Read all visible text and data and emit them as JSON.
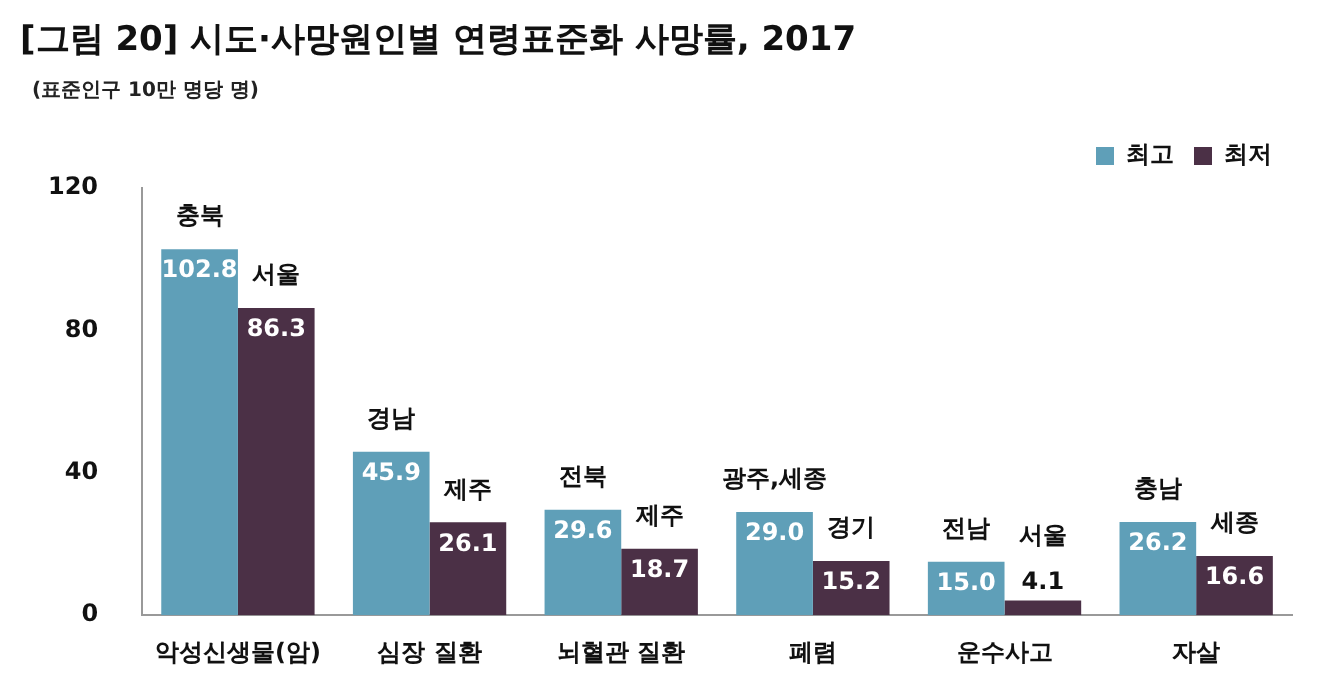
{
  "chart_data": {
    "type": "bar",
    "title": "[그림 20] 시도·사망원인별 연령표준화 사망률, 2017",
    "subtitle": "(표준인구 10만 명당 명)",
    "categories": [
      "악성신생물(암)",
      "심장 질환",
      "뇌혈관 질환",
      "폐렴",
      "운수사고",
      "자살"
    ],
    "series": [
      {
        "name": "최고",
        "color": "#5f9fb8",
        "values": [
          102.8,
          45.9,
          29.6,
          29.0,
          15.0,
          26.2
        ],
        "value_labels": [
          "102.8",
          "45.9",
          "29.6",
          "29.0",
          "15.0",
          "26.2"
        ]
      },
      {
        "name": "최저",
        "color": "#4b3046",
        "values": [
          86.3,
          26.1,
          18.7,
          15.2,
          4.1,
          16.6
        ],
        "value_labels": [
          "86.3",
          "26.1",
          "18.7",
          "15.2",
          "4.1",
          "16.6"
        ]
      }
    ],
    "ylim": [
      0,
      120
    ],
    "yticks": [
      0,
      40,
      80,
      120
    ],
    "grid": false,
    "legend": "top right",
    "annotations": [
      {
        "text": "충북",
        "x": "악성신생물(암)",
        "y": 102.8
      },
      {
        "text": "서울",
        "x": "악성신생물(암)",
        "y": 86.3
      },
      {
        "text": "경남",
        "x": "심장 질환",
        "y": 45.9
      },
      {
        "text": "제주",
        "x": "심장 질환",
        "y": 26.1
      },
      {
        "text": "전북",
        "x": "뇌혈관 질환",
        "y": 29.6
      },
      {
        "text": "제주",
        "x": "뇌혈관 질환",
        "y": 18.7
      },
      {
        "text": "광주,세종",
        "x": "폐렴",
        "y": 29.0
      },
      {
        "text": "경기",
        "x": "폐렴",
        "y": 15.2
      },
      {
        "text": "전남",
        "x": "운수사고",
        "y": 15.0
      },
      {
        "text": "서울",
        "x": "운수사고",
        "y": 4.1
      },
      {
        "text": "충남",
        "x": "자살",
        "y": 26.2
      },
      {
        "text": "세종",
        "x": "자살",
        "y": 16.6
      }
    ]
  }
}
